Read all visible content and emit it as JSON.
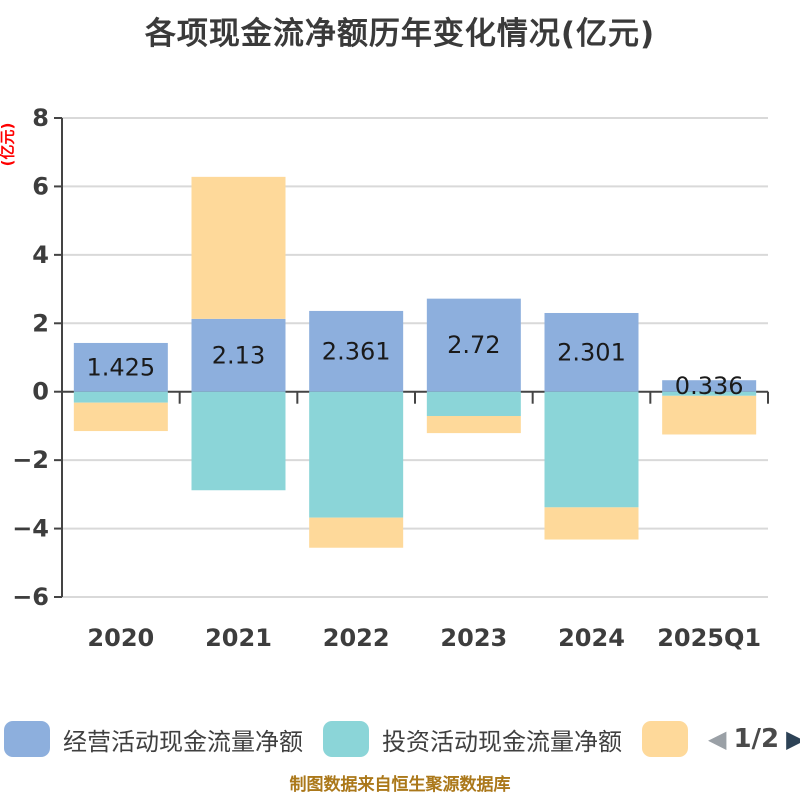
{
  "title": {
    "text": "各项现金流净额历年变化情况(亿元)"
  },
  "y_axis_name": "(亿元)",
  "footer": {
    "text": "制图数据来自恒生聚源数据库"
  },
  "legend": {
    "page_indicator": "1/2",
    "prev_icon": "◀",
    "next_icon": "▶"
  },
  "colors": {
    "background": "#ffffff",
    "title_text": "#3a3a3a",
    "gridline": "#d9d9d9",
    "axis": "#444444",
    "tick_text": "#3d3d3d",
    "bar_label_text": "#1a1a1a",
    "legend_text": "#3f3f3f",
    "ylabel_text": "#ff0000",
    "footer_text": "#ab781a",
    "pager_prev": "#9aa0a6",
    "pager_next": "#2d4256"
  },
  "chart_data": {
    "type": "bar",
    "stacked": true,
    "title": "各项现金流净额历年变化情况(亿元)",
    "ylabel": "(亿元)",
    "ylim": [
      -6,
      8
    ],
    "yticks": [
      8,
      6,
      4,
      2,
      0,
      -2,
      -4,
      -6
    ],
    "grid": true,
    "legend_position": "bottom",
    "categories": [
      "2020",
      "2021",
      "2022",
      "2023",
      "2024",
      "2025Q1"
    ],
    "series": [
      {
        "name": "经营活动现金流量净额",
        "color": "#8dafdd",
        "values": [
          1.425,
          2.13,
          2.361,
          2.72,
          2.301,
          0.336
        ],
        "data_labels": [
          "1.425",
          "2.13",
          "2.361",
          "2.72",
          "2.301",
          "0.336"
        ]
      },
      {
        "name": "投资活动现金流量净额",
        "color": "#8bd5d8",
        "values": [
          -0.32,
          -2.88,
          -3.68,
          -0.71,
          -3.38,
          -0.12
        ]
      },
      {
        "name": "",
        "color": "#fed99a",
        "values": [
          -0.83,
          4.15,
          -0.88,
          -0.5,
          -0.94,
          -1.13
        ]
      }
    ]
  }
}
